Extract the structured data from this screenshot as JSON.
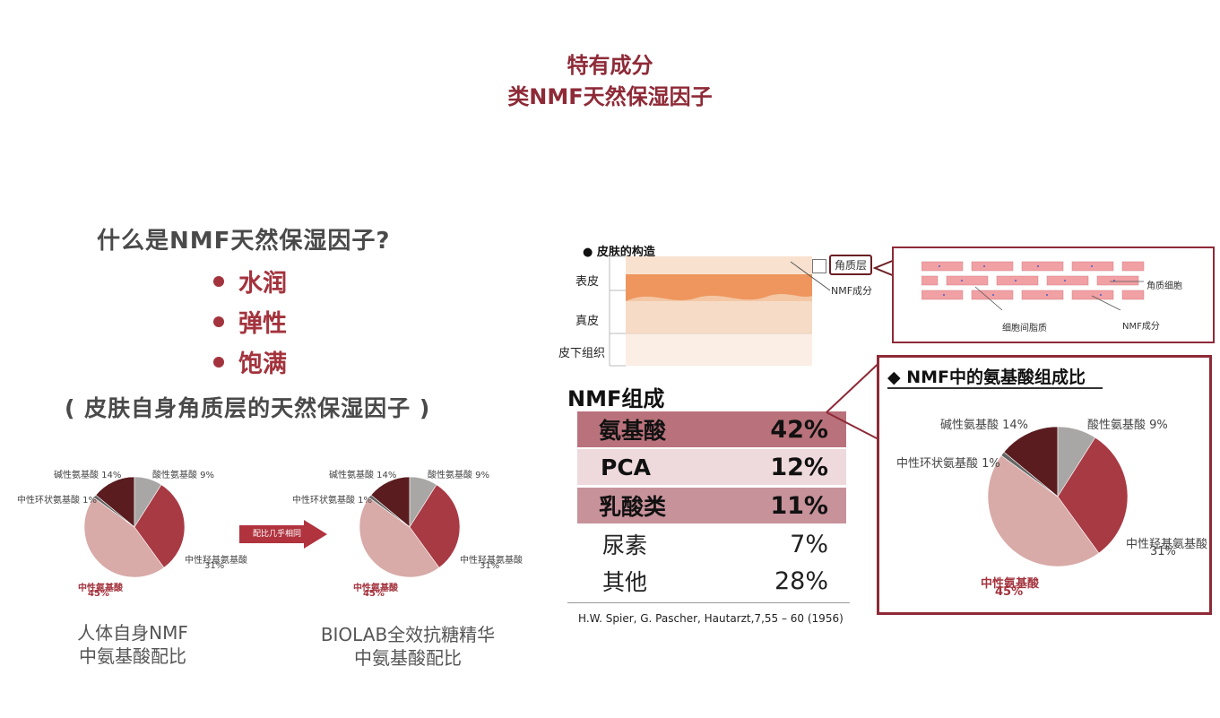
{
  "header": {
    "title_line1": "特有成分",
    "title_line2": "类NMF天然保湿因子"
  },
  "left": {
    "question": "什么是NMF天然保湿因子?",
    "bullets": [
      "水润",
      "弹性",
      "饱满"
    ],
    "note": "( 皮肤自身角质层的天然保湿因子 )",
    "arrow_label": "配比几乎相同",
    "pie_left_caption": [
      "人体自身NMF",
      "中氨基酸配比"
    ],
    "pie_right_caption": [
      "BIOLAB全效抗糖精华",
      "中氨基酸配比"
    ],
    "pie_labels": {
      "basic": "碱性氨基酸 14%",
      "acidic": "酸性氨基酸 9%",
      "cyclic": "中性环状氨基酸 1%",
      "hydroxy": "中性羟基氨基酸",
      "hydroxy_pct": "31%",
      "neutral": "中性氨基酸",
      "neutral_pct": "45%"
    }
  },
  "skin": {
    "title": "皮肤的构造",
    "layers": [
      "表皮",
      "真皮",
      "皮下组织"
    ],
    "callout": "角质层",
    "nmf_label": "NMF成分",
    "detail_cell": "角质细胞",
    "detail_lipid": "细胞间脂质",
    "detail_nmf": "NMF成分"
  },
  "composition": {
    "title": "NMF组成",
    "rows": [
      {
        "name": "氨基酸",
        "pct": "42%"
      },
      {
        "name": "PCA",
        "pct": "12%"
      },
      {
        "name": "乳酸类",
        "pct": "11%"
      },
      {
        "name": "尿素",
        "pct": "7%"
      },
      {
        "name": "其他",
        "pct": "28%"
      }
    ],
    "citation": "H.W. Spier, G. Pascher, Hautarzt,7,55 – 60 (1956)"
  },
  "amino_box": {
    "title": "◆ NMF中的氨基酸组成比"
  },
  "chart_data": {
    "type": "pie",
    "categories": [
      "碱性氨基酸",
      "酸性氨基酸",
      "中性羟基氨基酸",
      "中性氨基酸",
      "中性环状氨基酸"
    ],
    "values": [
      14,
      9,
      31,
      45,
      1
    ],
    "colors": [
      "#5a1c1f",
      "#a9a7a6",
      "#a83a44",
      "#d8aaa8",
      "#666666"
    ]
  }
}
